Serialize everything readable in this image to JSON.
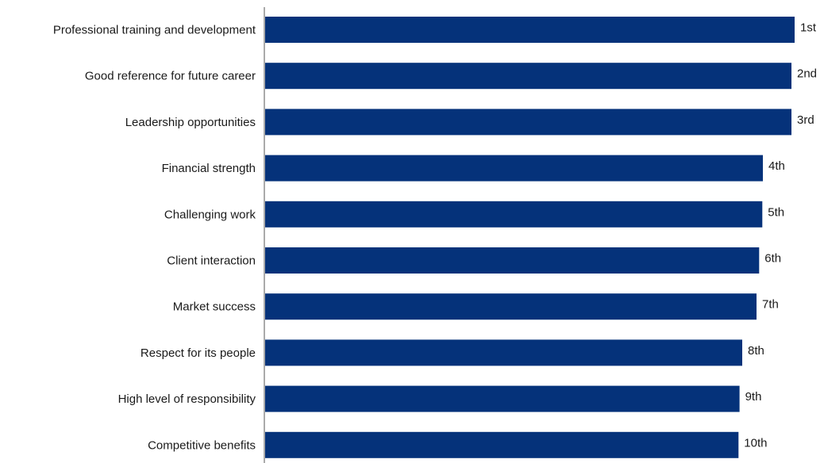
{
  "chart_data": {
    "type": "bar",
    "orientation": "horizontal",
    "categories": [
      "Professional training and development",
      "Good reference for future career",
      "Leadership opportunities",
      "Financial strength",
      "Challenging work",
      "Client interaction",
      "Market success",
      "Respect for its people",
      "High level of responsibility",
      "Competitive benefits"
    ],
    "values": [
      100,
      99.4,
      99.4,
      94.0,
      93.9,
      93.3,
      92.8,
      90.1,
      89.6,
      89.4
    ],
    "data_labels": [
      "1st",
      "2nd",
      "3rd",
      "4th",
      "5th",
      "6th",
      "7th",
      "8th",
      "9th",
      "10th"
    ],
    "xlim": [
      0,
      100
    ],
    "grid": false,
    "legend": "none",
    "bar_color": "#05327a",
    "axis_color": "#555555",
    "text_color": "#1a1a1a"
  }
}
